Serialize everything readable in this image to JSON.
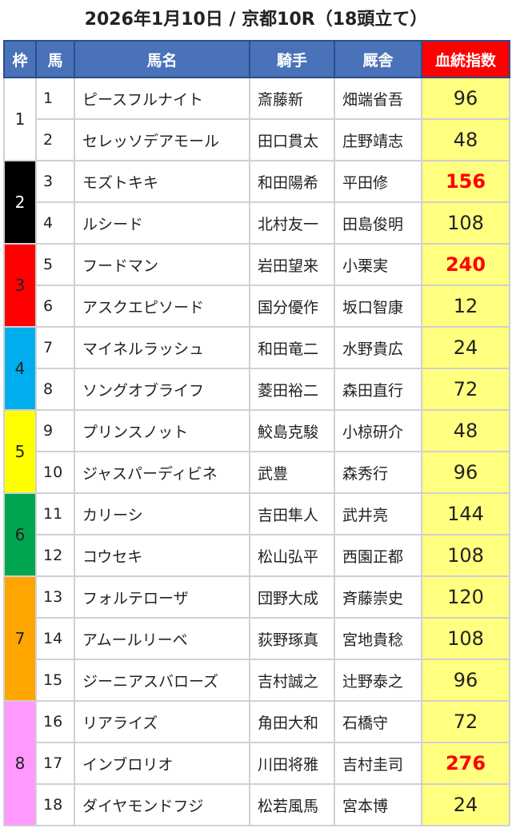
{
  "title": "2026年1月10日 / 京都10R（18頭立て）",
  "headers": {
    "waku": "枠",
    "num": "馬",
    "name": "馬名",
    "jockey": "騎手",
    "trainer": "厩舎",
    "index": "血統指数"
  },
  "colors": {
    "header": "#4a72b8",
    "index_header": "#ff0000",
    "index_cell": "#ffff80",
    "highlight_text": "#ff0000"
  },
  "frames": [
    {
      "label": "1",
      "bg": "#ffffff",
      "fg": "#222222"
    },
    {
      "label": "2",
      "bg": "#000000",
      "fg": "#ffffff"
    },
    {
      "label": "3",
      "bg": "#ff0000",
      "fg": "#222222"
    },
    {
      "label": "4",
      "bg": "#00aeef",
      "fg": "#222222"
    },
    {
      "label": "5",
      "bg": "#ffff00",
      "fg": "#222222"
    },
    {
      "label": "6",
      "bg": "#00a650",
      "fg": "#222222"
    },
    {
      "label": "7",
      "bg": "#ffa500",
      "fg": "#222222"
    },
    {
      "label": "8",
      "bg": "#ff99ff",
      "fg": "#222222"
    }
  ],
  "horses": [
    {
      "frame": "1",
      "num": "1",
      "name": "ピースフルナイト",
      "jockey": "斎藤新",
      "trainer": "畑端省吾",
      "index": "96",
      "highlight": false
    },
    {
      "frame": "1",
      "num": "2",
      "name": "セレッソデアモール",
      "jockey": "田口貫太",
      "trainer": "庄野靖志",
      "index": "48",
      "highlight": false
    },
    {
      "frame": "2",
      "num": "3",
      "name": "モズトキキ",
      "jockey": "和田陽希",
      "trainer": "平田修",
      "index": "156",
      "highlight": true
    },
    {
      "frame": "2",
      "num": "4",
      "name": "ルシード",
      "jockey": "北村友一",
      "trainer": "田島俊明",
      "index": "108",
      "highlight": false
    },
    {
      "frame": "3",
      "num": "5",
      "name": "フードマン",
      "jockey": "岩田望来",
      "trainer": "小栗実",
      "index": "240",
      "highlight": true
    },
    {
      "frame": "3",
      "num": "6",
      "name": "アスクエピソード",
      "jockey": "国分優作",
      "trainer": "坂口智康",
      "index": "12",
      "highlight": false
    },
    {
      "frame": "4",
      "num": "7",
      "name": "マイネルラッシュ",
      "jockey": "和田竜二",
      "trainer": "水野貴広",
      "index": "24",
      "highlight": false
    },
    {
      "frame": "4",
      "num": "8",
      "name": "ソングオブライフ",
      "jockey": "菱田裕二",
      "trainer": "森田直行",
      "index": "72",
      "highlight": false
    },
    {
      "frame": "5",
      "num": "9",
      "name": "プリンスノット",
      "jockey": "鮫島克駿",
      "trainer": "小椋研介",
      "index": "48",
      "highlight": false
    },
    {
      "frame": "5",
      "num": "10",
      "name": "ジャスパーディビネ",
      "jockey": "武豊",
      "trainer": "森秀行",
      "index": "96",
      "highlight": false
    },
    {
      "frame": "6",
      "num": "11",
      "name": "カリーシ",
      "jockey": "吉田隼人",
      "trainer": "武井亮",
      "index": "144",
      "highlight": false
    },
    {
      "frame": "6",
      "num": "12",
      "name": "コウセキ",
      "jockey": "松山弘平",
      "trainer": "西園正都",
      "index": "108",
      "highlight": false
    },
    {
      "frame": "7",
      "num": "13",
      "name": "フォルテローザ",
      "jockey": "団野大成",
      "trainer": "斉藤崇史",
      "index": "120",
      "highlight": false
    },
    {
      "frame": "7",
      "num": "14",
      "name": "アムールリーベ",
      "jockey": "荻野琢真",
      "trainer": "宮地貴稔",
      "index": "108",
      "highlight": false
    },
    {
      "frame": "7",
      "num": "15",
      "name": "ジーニアスバローズ",
      "jockey": "吉村誠之",
      "trainer": "辻野泰之",
      "index": "96",
      "highlight": false
    },
    {
      "frame": "8",
      "num": "16",
      "name": "リアライズ",
      "jockey": "角田大和",
      "trainer": "石橋守",
      "index": "72",
      "highlight": false
    },
    {
      "frame": "8",
      "num": "17",
      "name": "インブロリオ",
      "jockey": "川田将雅",
      "trainer": "吉村圭司",
      "index": "276",
      "highlight": true
    },
    {
      "frame": "8",
      "num": "18",
      "name": "ダイヤモンドフジ",
      "jockey": "松若風馬",
      "trainer": "宮本博",
      "index": "24",
      "highlight": false
    }
  ]
}
